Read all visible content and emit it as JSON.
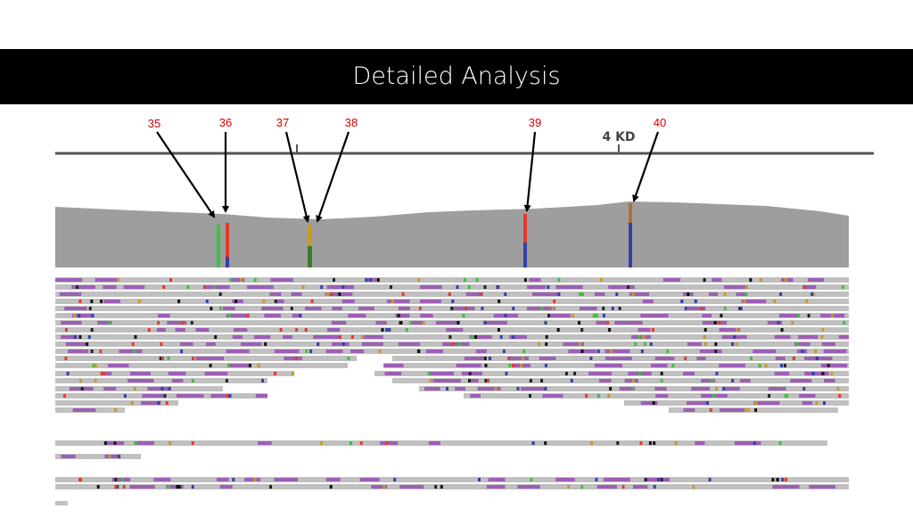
{
  "slide": {
    "title": "Detailed Analysis"
  },
  "genome_viewer": {
    "scale_label": "4 KD",
    "markers": [
      {
        "label": "35",
        "label_color": "#d40000",
        "allele_colors": [
          "#3cc23c",
          "#7a4fb8"
        ]
      },
      {
        "label": "36",
        "label_color": "#d40000",
        "allele_colors": [
          "#e53a2a",
          "#3340a8"
        ]
      },
      {
        "label": "37",
        "label_color": "#d40000",
        "allele_colors": [
          "#c79a2a",
          "#3a7a2a"
        ]
      },
      {
        "label": "38",
        "label_color": "#d40000",
        "allele_colors": [
          "#c79a2a",
          "#3a7a2a"
        ]
      },
      {
        "label": "39",
        "label_color": "#d40000",
        "allele_colors": [
          "#e53a2a",
          "#3340a8"
        ]
      },
      {
        "label": "40",
        "label_color": "#d40000",
        "allele_colors": [
          "#a9713c",
          "#3340a8"
        ]
      }
    ],
    "colors": {
      "coverage": "#9e9e9e",
      "read": "#c0c0c0",
      "insertion": "#9d5fb5",
      "ruler": "#555555",
      "arrow": "#000000"
    }
  }
}
